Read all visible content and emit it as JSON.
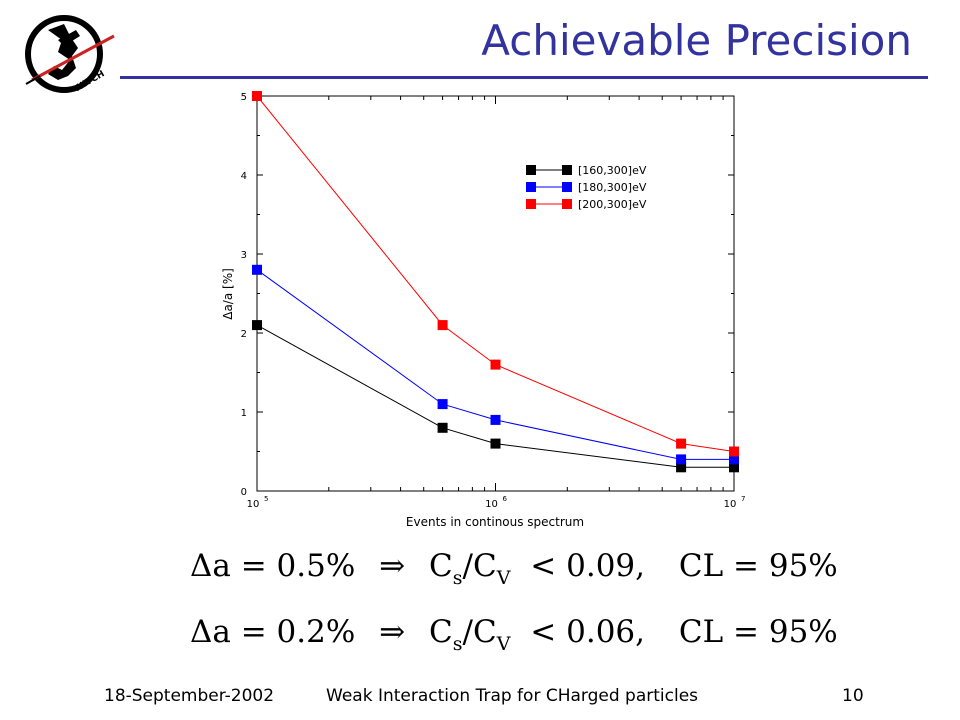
{
  "slide": {
    "title": "Achievable Precision",
    "footer": {
      "date": "18-September-2002",
      "center": "Weak Interaction Trap for CHarged particles",
      "page": "10"
    },
    "logo_text": "WITCH",
    "equations": [
      {
        "lhs": "Δa = 0.5%",
        "arrow": "⇒",
        "ratio_num": "C",
        "ratio_num_sub": "s",
        "slash": "/",
        "ratio_den": "C",
        "ratio_den_sub": "V",
        "rel": "< 0.09,",
        "cl": "CL = 95%"
      },
      {
        "lhs": "Δa = 0.2%",
        "arrow": "⇒",
        "ratio_num": "C",
        "ratio_num_sub": "s",
        "slash": "/",
        "ratio_den": "C",
        "ratio_den_sub": "V",
        "rel": "< 0.06,",
        "cl": "CL = 95%"
      }
    ]
  },
  "chart_data": {
    "type": "line",
    "xlabel": "Events in continous spectrum",
    "ylabel": "Δa/a [%]",
    "xscale": "log",
    "xlim": [
      100000,
      10000000
    ],
    "ylim": [
      0,
      5
    ],
    "x_ticks": [
      {
        "value": 100000,
        "base": "10",
        "exp": "5"
      },
      {
        "value": 1000000,
        "base": "10",
        "exp": "6"
      },
      {
        "value": 10000000,
        "base": "10",
        "exp": "7"
      }
    ],
    "y_ticks": [
      "0",
      "1",
      "2",
      "3",
      "4",
      "5"
    ],
    "x": [
      100000,
      600000,
      1000000,
      6000000,
      10000000
    ],
    "legend_position": "top-right",
    "series": [
      {
        "name": "[160,300]eV",
        "color": "#000000",
        "values": [
          2.1,
          0.8,
          0.6,
          0.3,
          0.3
        ]
      },
      {
        "name": "[180,300]eV",
        "color": "#0000ff",
        "values": [
          2.8,
          1.1,
          0.9,
          0.4,
          0.4
        ]
      },
      {
        "name": "[200,300]eV",
        "color": "#ff0000",
        "values": [
          5.0,
          2.1,
          1.6,
          0.6,
          0.5
        ]
      }
    ]
  }
}
